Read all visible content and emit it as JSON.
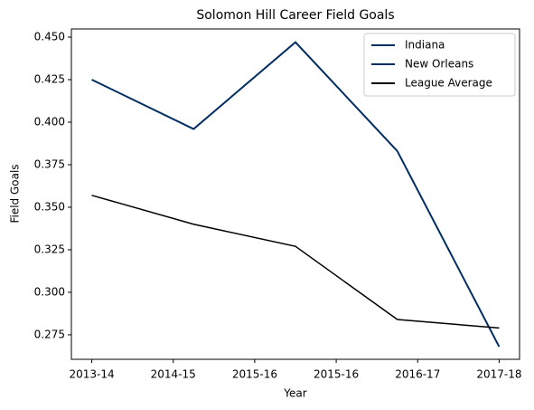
{
  "chart_data": {
    "type": "line",
    "title": "Solomon Hill  Career Field Goals",
    "xlabel": "Year",
    "ylabel": "Field Goals",
    "x": [
      0,
      1,
      2,
      3,
      4
    ],
    "series": [
      {
        "name": "Indiana",
        "color": "#002d62",
        "values": [
          0.425,
          0.396,
          0.447,
          0.383,
          null
        ]
      },
      {
        "name": "New Orleans",
        "color": "#002d62",
        "values": [
          null,
          null,
          null,
          0.383,
          0.268
        ]
      },
      {
        "name": "League Average",
        "color": "#000000",
        "values": [
          0.357,
          0.34,
          0.327,
          0.284,
          0.279
        ]
      }
    ],
    "xlim": [
      -0.2,
      4.2
    ],
    "xticks": [
      {
        "value": 0,
        "label": "2013-14"
      },
      {
        "value": 0.8,
        "label": "2014-15"
      },
      {
        "value": 1.6,
        "label": "2015-16"
      },
      {
        "value": 2.4,
        "label": "2015-16"
      },
      {
        "value": 3.2,
        "label": "2016-17"
      },
      {
        "value": 4.0,
        "label": "2017-18"
      }
    ],
    "ylim": [
      0.2606,
      0.4548
    ],
    "yticks": [
      {
        "value": 0.275,
        "label": "0.275"
      },
      {
        "value": 0.3,
        "label": "0.300"
      },
      {
        "value": 0.325,
        "label": "0.325"
      },
      {
        "value": 0.35,
        "label": "0.350"
      },
      {
        "value": 0.375,
        "label": "0.375"
      },
      {
        "value": 0.4,
        "label": "0.400"
      },
      {
        "value": 0.425,
        "label": "0.425"
      },
      {
        "value": 0.45,
        "label": "0.450"
      }
    ],
    "legend": "upper right"
  }
}
